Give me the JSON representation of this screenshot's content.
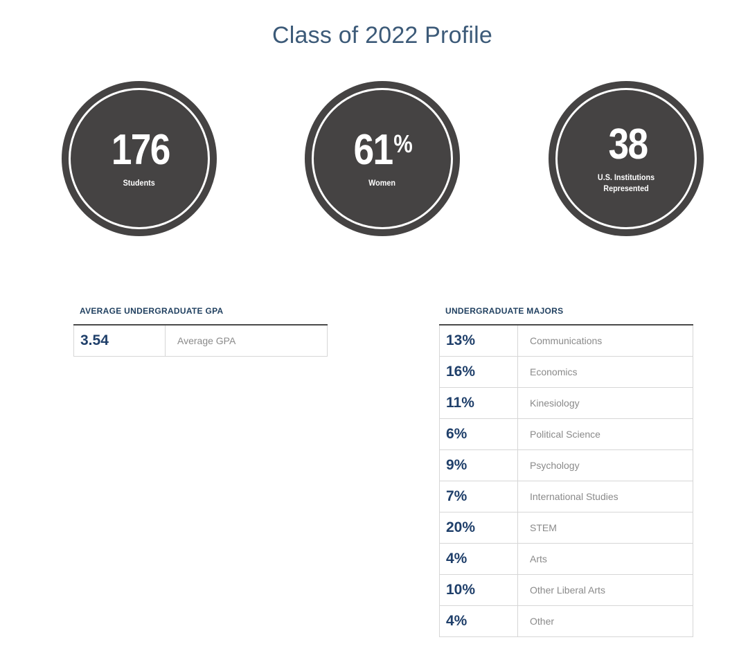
{
  "page": {
    "title": "Class of 2022 Profile"
  },
  "stats": [
    {
      "number": "176",
      "suffix": "",
      "label": "Students"
    },
    {
      "number": "61",
      "suffix": "%",
      "label": "Women"
    },
    {
      "number": "38",
      "suffix": "",
      "label": "U.S. Institutions Represented"
    }
  ],
  "gpa": {
    "heading": "AVERAGE UNDERGRADUATE GPA",
    "rows": [
      {
        "value": "3.54",
        "label": "Average GPA"
      }
    ]
  },
  "majors": {
    "heading": "UNDERGRADUATE MAJORS",
    "rows": [
      {
        "value": "13%",
        "label": "Communications"
      },
      {
        "value": "16%",
        "label": "Economics"
      },
      {
        "value": "11%",
        "label": "Kinesiology"
      },
      {
        "value": "6%",
        "label": "Political Science"
      },
      {
        "value": "9%",
        "label": "Psychology"
      },
      {
        "value": "7%",
        "label": "International Studies"
      },
      {
        "value": "20%",
        "label": "STEM"
      },
      {
        "value": "4%",
        "label": "Arts"
      },
      {
        "value": "10%",
        "label": "Other Liberal Arts"
      },
      {
        "value": "4%",
        "label": "Other"
      }
    ]
  },
  "colors": {
    "title": "#3c5a78",
    "circle": "#454343",
    "heading": "#1f3f5f",
    "value": "#1f3f6a",
    "label": "#8a8a8a"
  }
}
